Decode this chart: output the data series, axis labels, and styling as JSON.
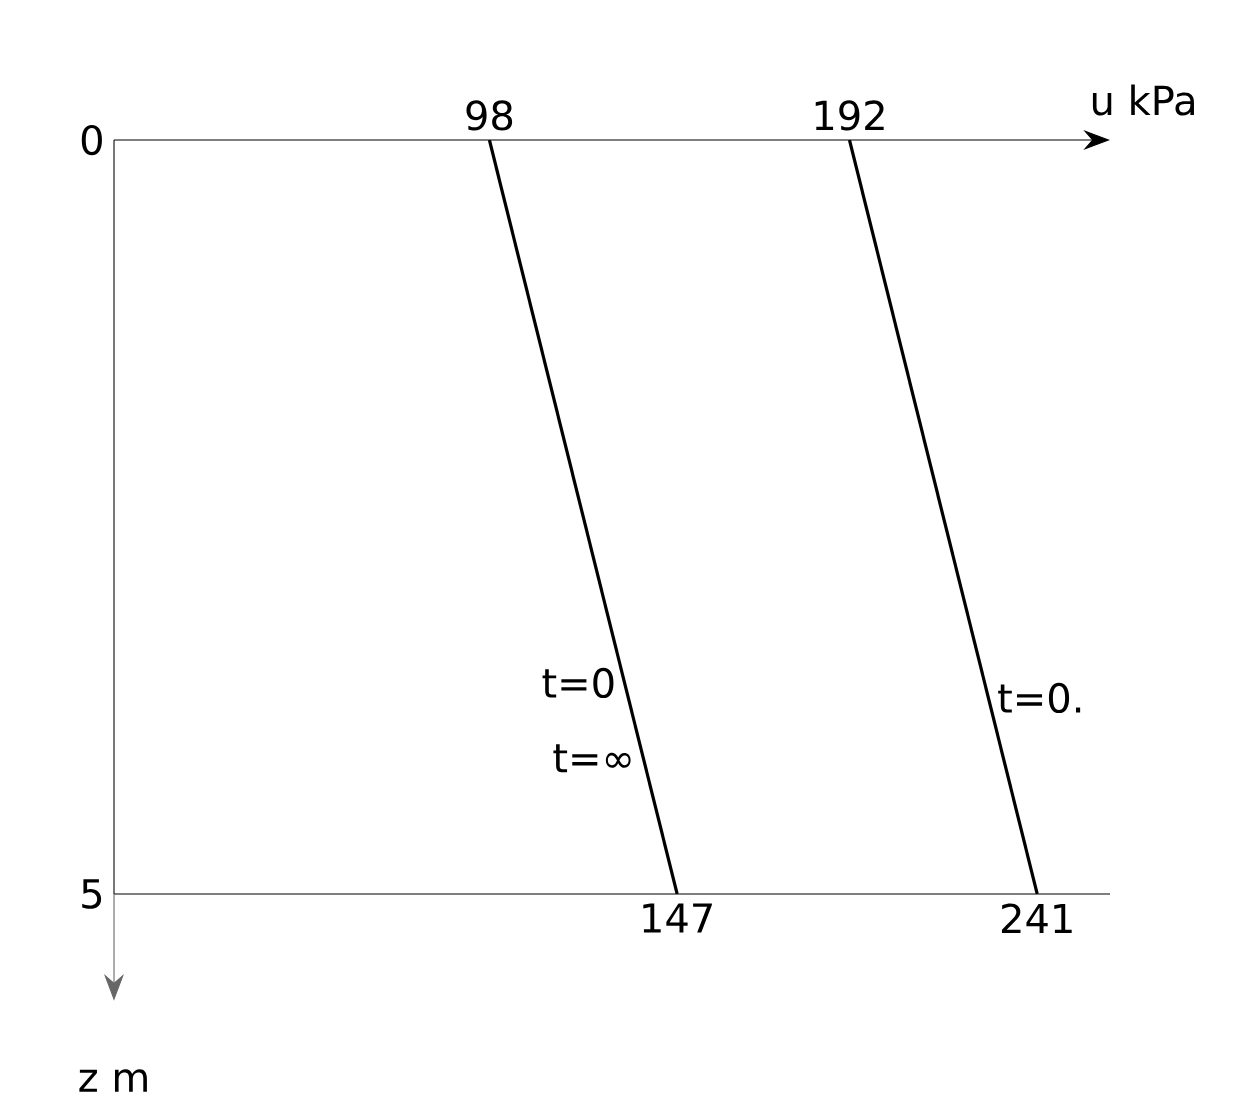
{
  "chart_data": {
    "type": "line",
    "x2label": "u kPa",
    "ylabel": "z m",
    "xlim": [
      0,
      260
    ],
    "xticks": [
      147,
      241
    ],
    "x2lim": [
      0,
      260
    ],
    "x2ticks": [
      98,
      192
    ],
    "ylim": [
      5,
      0
    ],
    "yticks": [
      0,
      5
    ],
    "marker": "none",
    "line_style": "solid",
    "series": [
      {
        "color": "#000000",
        "x": [
          98,
          147
        ],
        "values": [
          0,
          5
        ]
      },
      {
        "color": "#000000",
        "x": [
          192,
          241
        ],
        "values": [
          0,
          5
        ]
      }
    ],
    "annotations": [
      {
        "text": "t=0",
        "x": 133.3,
        "y": 3.6
      },
      {
        "text": "t=∞",
        "x": 138.2,
        "y": 4.1
      },
      {
        "text": "t=0.",
        "x": 228.3,
        "y": 3.7
      }
    ]
  }
}
